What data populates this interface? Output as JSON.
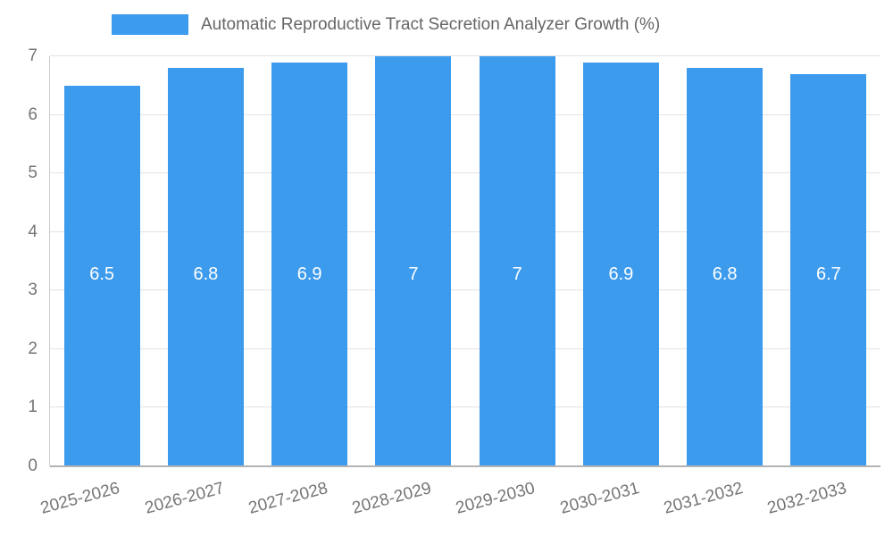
{
  "chart_data": {
    "type": "bar",
    "title": "Automatic Reproductive Tract Secretion Analyzer Growth (%)",
    "categories": [
      "2025-2026",
      "2026-2027",
      "2027-2028",
      "2028-2029",
      "2029-2030",
      "2030-2031",
      "2031-2032",
      "2032-2033"
    ],
    "values": [
      6.5,
      6.8,
      6.9,
      7,
      7,
      6.9,
      6.8,
      6.7
    ],
    "value_labels": [
      "6.5",
      "6.8",
      "6.9",
      "7",
      "7",
      "6.9",
      "6.8",
      "6.7"
    ],
    "xlabel": "",
    "ylabel": "",
    "ylim": [
      0,
      7
    ],
    "y_ticks": [
      0,
      1,
      2,
      3,
      4,
      5,
      6,
      7
    ],
    "grid": true,
    "legend_position": "top",
    "colors": {
      "bar": "#3d9bee",
      "value_label": "#ffffff",
      "axis_text": "#757575",
      "gridline": "#e3e3e3",
      "baseline": "#b3b3b3",
      "title_text": "#666666"
    }
  }
}
